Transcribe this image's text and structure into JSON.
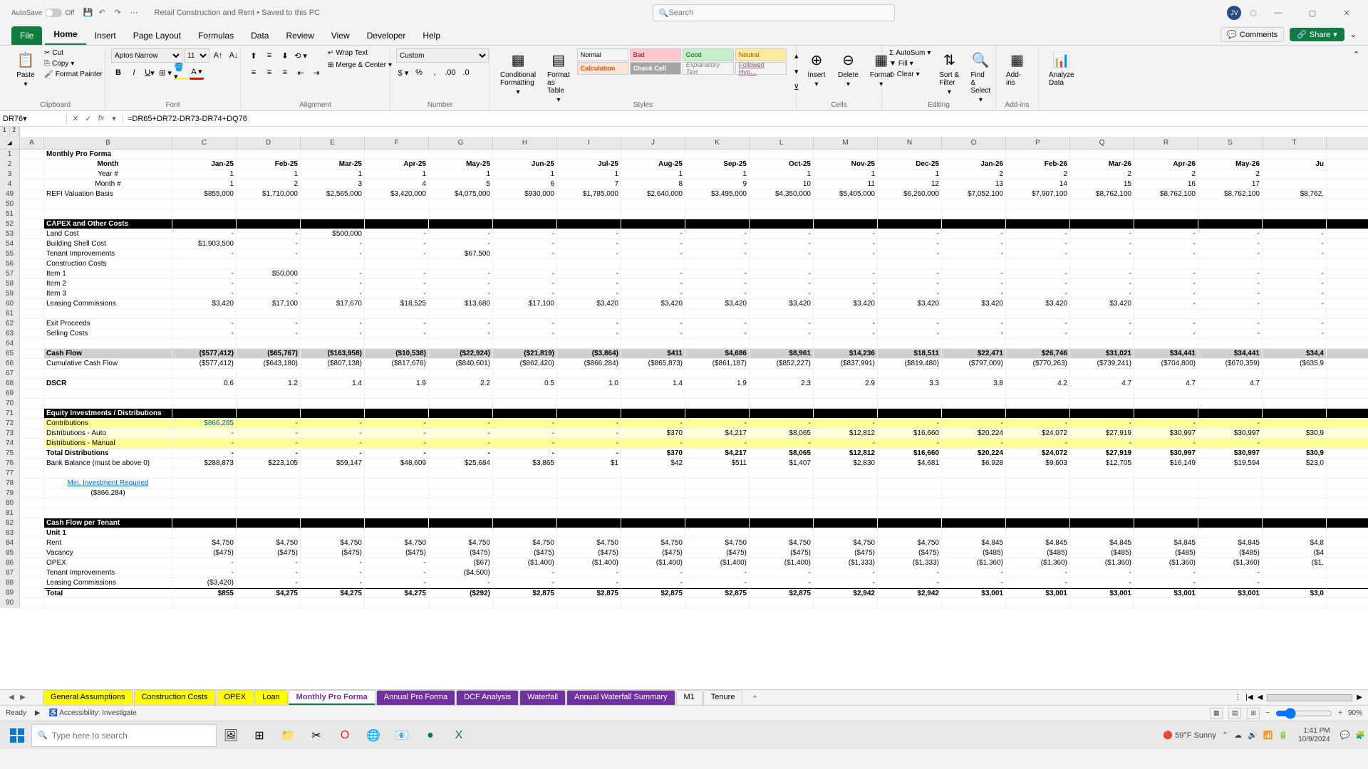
{
  "titlebar": {
    "autosave_label": "AutoSave",
    "autosave_state": "Off",
    "doc_title": "Retail Construction and Rent • Saved to this PC",
    "search_placeholder": "Search",
    "user_initials": "JV"
  },
  "tabs": {
    "items": [
      "File",
      "Home",
      "Insert",
      "Page Layout",
      "Formulas",
      "Data",
      "Review",
      "View",
      "Developer",
      "Help"
    ],
    "active": "Home",
    "comments": "Comments",
    "share": "Share"
  },
  "ribbon": {
    "clipboard": {
      "paste": "Paste",
      "cut": "Cut",
      "copy": "Copy",
      "fp": "Format Painter",
      "label": "Clipboard"
    },
    "font": {
      "name": "Aptos Narrow",
      "size": "11",
      "label": "Font"
    },
    "alignment": {
      "wrap": "Wrap Text",
      "merge": "Merge & Center",
      "label": "Alignment"
    },
    "number": {
      "format": "Custom",
      "label": "Number"
    },
    "styles": {
      "cond": "Conditional Formatting",
      "fat": "Format as Table",
      "normal": "Normal",
      "bad": "Bad",
      "good": "Good",
      "neutral": "Neutral",
      "calc": "Calculation",
      "check": "Check Cell",
      "explan": "Explanatory Text",
      "followed": "Followed Hyp…",
      "label": "Styles"
    },
    "cells": {
      "insert": "Insert",
      "delete": "Delete",
      "format": "Format",
      "label": "Cells"
    },
    "editing": {
      "autosum": "AutoSum",
      "fill": "Fill",
      "clear": "Clear",
      "sort": "Sort & Filter",
      "find": "Find & Select",
      "label": "Editing"
    },
    "addins": {
      "addins": "Add-ins",
      "label": "Add-ins"
    },
    "analyze": {
      "analyze": "Analyze Data"
    }
  },
  "formulabar": {
    "namebox": "DR76",
    "formula": "=DR65+DR72-DR73-DR74+DQ76"
  },
  "columns": {
    "letters": [
      "A",
      "B",
      "C",
      "D",
      "E",
      "F",
      "G",
      "H",
      "I",
      "J",
      "K",
      "L",
      "M",
      "N",
      "O",
      "P",
      "Q",
      "R",
      "S",
      "T"
    ],
    "widths": [
      34,
      180,
      90,
      90,
      90,
      90,
      90,
      90,
      90,
      90,
      90,
      90,
      90,
      90,
      90,
      90,
      90,
      90,
      90,
      90,
      60
    ]
  },
  "rows": {
    "heights": 14,
    "numbers": [
      1,
      2,
      3,
      4,
      49,
      50,
      51,
      52,
      53,
      54,
      55,
      56,
      57,
      58,
      59,
      60,
      61,
      62,
      63,
      64,
      65,
      66,
      67,
      68,
      69,
      70,
      71,
      72,
      73,
      74,
      75,
      76,
      77,
      78,
      79,
      80,
      81,
      82,
      83,
      84,
      85,
      86,
      87,
      88,
      89,
      90
    ]
  },
  "data": {
    "title": "Monthly Pro Forma",
    "month_label": "Month",
    "months": [
      "Jan-25",
      "Feb-25",
      "Mar-25",
      "Apr-25",
      "May-25",
      "Jun-25",
      "Jul-25",
      "Aug-25",
      "Sep-25",
      "Oct-25",
      "Nov-25",
      "Dec-25",
      "Jan-26",
      "Feb-26",
      "Mar-26",
      "Apr-26",
      "May-26",
      "Ju"
    ],
    "year_label": "Year #",
    "years": [
      "1",
      "1",
      "1",
      "1",
      "1",
      "1",
      "1",
      "1",
      "1",
      "1",
      "1",
      "1",
      "2",
      "2",
      "2",
      "2",
      "2",
      ""
    ],
    "monthnum_label": "Month #",
    "monthnums": [
      "1",
      "2",
      "3",
      "4",
      "5",
      "6",
      "7",
      "8",
      "9",
      "10",
      "11",
      "12",
      "13",
      "14",
      "15",
      "16",
      "17",
      ""
    ],
    "refi_label": "REFI Valuation Basis",
    "refi": [
      "$855,000",
      "$1,710,000",
      "$2,565,000",
      "$3,420,000",
      "$4,075,000",
      "$930,000",
      "$1,785,000",
      "$2,640,000",
      "$3,495,000",
      "$4,350,000",
      "$5,405,000",
      "$6,260,000",
      "$7,052,100",
      "$7,907,100",
      "$8,762,100",
      "$8,762,100",
      "$8,762,100",
      "$8,762,"
    ],
    "capex_header": "CAPEX and Other Costs",
    "land": "Land Cost",
    "land_vals": [
      "-",
      "-",
      "$500,000",
      "",
      "",
      "",
      "",
      "",
      "",
      "",
      "",
      "",
      "",
      "",
      "",
      "",
      "",
      ""
    ],
    "shell": "Building Shell Cost",
    "shell_vals": [
      "$1,903,500",
      "",
      "",
      "",
      "",
      "",
      "",
      "",
      "",
      "",
      "",
      "",
      "",
      "",
      "",
      "",
      "",
      ""
    ],
    "ti": "Tenant Improvements",
    "ti_vals": [
      "",
      "",
      "",
      "",
      "$67,500",
      "",
      "",
      "",
      "",
      "",
      "",
      "",
      "",
      "",
      "",
      "",
      "",
      ""
    ],
    "cc": "Construction Costs",
    "i1": "Item 1",
    "i1_vals": [
      "-",
      "$50,000",
      "",
      "",
      "",
      "",
      "",
      "",
      "",
      "",
      "",
      "",
      "",
      "",
      "",
      "",
      "",
      ""
    ],
    "i2": "Item 2",
    "i3": "Item 3",
    "lc": "Leasing Commissions",
    "lc_vals": [
      "$3,420",
      "$17,100",
      "$17,670",
      "$18,525",
      "$13,680",
      "$17,100",
      "$3,420",
      "$3,420",
      "$3,420",
      "$3,420",
      "$3,420",
      "$3,420",
      "$3,420",
      "$3,420",
      "$3,420",
      "",
      "",
      ""
    ],
    "exit": "Exit Proceeds",
    "sell": "Selling Costs",
    "cf_header": "Cash Flow",
    "cf": [
      "($577,412)",
      "($65,767)",
      "($163,958)",
      "($10,538)",
      "($22,924)",
      "($21,819)",
      "($3,864)",
      "$411",
      "$4,686",
      "$8,961",
      "$14,236",
      "$18,511",
      "$22,471",
      "$26,746",
      "$31,021",
      "$34,441",
      "$34,441",
      "$34,4"
    ],
    "ccf_label": "Cumulative Cash Flow",
    "ccf": [
      "($577,412)",
      "($643,180)",
      "($807,138)",
      "($817,676)",
      "($840,601)",
      "($862,420)",
      "($866,284)",
      "($865,873)",
      "($861,187)",
      "($852,227)",
      "($837,991)",
      "($819,480)",
      "($797,009)",
      "($770,263)",
      "($739,241)",
      "($704,800)",
      "($670,359)",
      "($635,9"
    ],
    "dscr_label": "DSCR",
    "dscr": [
      "0.6",
      "1.2",
      "1.4",
      "1.9",
      "2.2",
      "0.5",
      "1.0",
      "1.4",
      "1.9",
      "2.3",
      "2.9",
      "3.3",
      "3.8",
      "4.2",
      "4.7",
      "4.7",
      "4.7",
      ""
    ],
    "eq_header": "Equity Investments / Distributions",
    "contrib": "Contributions",
    "contrib_vals": [
      "$866,285",
      "-",
      "-",
      "-",
      "-",
      "-",
      "-",
      "-",
      "-",
      "-",
      "-",
      "-",
      "-",
      "-",
      "-",
      "-",
      "-",
      ""
    ],
    "da": "Distributions - Auto",
    "da_vals": [
      "-",
      "-",
      "-",
      "-",
      "-",
      "-",
      "-",
      "$370",
      "$4,217",
      "$8,065",
      "$12,812",
      "$16,660",
      "$20,224",
      "$24,072",
      "$27,919",
      "$30,997",
      "$30,997",
      "$30,9"
    ],
    "dm": "Distributions - Manual",
    "dm_vals": [
      "-",
      "-",
      "-",
      "-",
      "-",
      "-",
      "-",
      "-",
      "-",
      "-",
      "-",
      "-",
      "-",
      "-",
      "-",
      "-",
      "-",
      ""
    ],
    "td": "Total Distributions",
    "td_vals": [
      "-",
      "-",
      "-",
      "-",
      "-",
      "-",
      "-",
      "$370",
      "$4,217",
      "$8,065",
      "$12,812",
      "$16,660",
      "$20,224",
      "$24,072",
      "$27,919",
      "$30,997",
      "$30,997",
      "$30,9"
    ],
    "bb_label": "Bank Balance (must be above 0)",
    "bb": [
      "$288,873",
      "$223,105",
      "$59,147",
      "$48,609",
      "$25,684",
      "$3,865",
      "$1",
      "$42",
      "$511",
      "$1,407",
      "$2,830",
      "$4,681",
      "$6,928",
      "$9,603",
      "$12,705",
      "$16,149",
      "$19,594",
      "$23,0"
    ],
    "min_inv": "Min. Investment Required",
    "min_val": "($866,284)",
    "cft_header": "Cash Flow per Tenant",
    "unit": "Unit 1",
    "rent": "Rent",
    "rent_vals": [
      "$4,750",
      "$4,750",
      "$4,750",
      "$4,750",
      "$4,750",
      "$4,750",
      "$4,750",
      "$4,750",
      "$4,750",
      "$4,750",
      "$4,750",
      "$4,750",
      "$4,845",
      "$4,845",
      "$4,845",
      "$4,845",
      "$4,845",
      "$4,8"
    ],
    "vac": "Vacancy",
    "vac_vals": [
      "($475)",
      "($475)",
      "($475)",
      "($475)",
      "($475)",
      "($475)",
      "($475)",
      "($475)",
      "($475)",
      "($475)",
      "($475)",
      "($475)",
      "($485)",
      "($485)",
      "($485)",
      "($485)",
      "($485)",
      "($4"
    ],
    "opex": "OPEX",
    "opex_vals": [
      "-",
      "-",
      "-",
      "-",
      "($67)",
      "($1,400)",
      "($1,400)",
      "($1,400)",
      "($1,400)",
      "($1,400)",
      "($1,333)",
      "($1,333)",
      "($1,360)",
      "($1,360)",
      "($1,360)",
      "($1,360)",
      "($1,360)",
      "($1,"
    ],
    "ti2": "Tenant Improvements",
    "ti2_vals": [
      "-",
      "-",
      "-",
      "-",
      "($4,500)",
      "-",
      "-",
      "-",
      "-",
      "-",
      "-",
      "-",
      "-",
      "-",
      "-",
      "-",
      "-",
      ""
    ],
    "lc2": "Leasing Commissions",
    "lc2_vals": [
      "($3,420)",
      "-",
      "-",
      "-",
      "-",
      "-",
      "-",
      "-",
      "-",
      "-",
      "-",
      "-",
      "-",
      "-",
      "-",
      "-",
      "-",
      ""
    ],
    "total": "Total",
    "tot_vals": [
      "$855",
      "$4,275",
      "$4,275",
      "$4,275",
      "($292)",
      "$2,875",
      "$2,875",
      "$2,875",
      "$2,875",
      "$2,875",
      "$2,942",
      "$2,942",
      "$3,001",
      "$3,001",
      "$3,001",
      "$3,001",
      "$3,001",
      "$3,0"
    ]
  },
  "sheets": {
    "items": [
      {
        "name": "General Assumptions",
        "color": "yellow"
      },
      {
        "name": "Construction Costs",
        "color": "yellow"
      },
      {
        "name": "OPEX",
        "color": "yellow"
      },
      {
        "name": "Loan",
        "color": "yellow"
      },
      {
        "name": "Monthly Pro Forma",
        "color": "active"
      },
      {
        "name": "Annual Pro Forma",
        "color": "purple"
      },
      {
        "name": "DCF Analysis",
        "color": "purple"
      },
      {
        "name": "Waterfall",
        "color": "purple"
      },
      {
        "name": "Annual Waterfall Summary",
        "color": "purple"
      },
      {
        "name": "M1",
        "color": ""
      },
      {
        "name": "Tenure",
        "color": ""
      }
    ]
  },
  "statusbar": {
    "ready": "Ready",
    "access": "Accessibility: Investigate",
    "zoom": "90%"
  },
  "taskbar": {
    "search": "Type here to search",
    "weather": "59°F  Sunny",
    "time": "1:41 PM",
    "date": "10/9/2024"
  }
}
